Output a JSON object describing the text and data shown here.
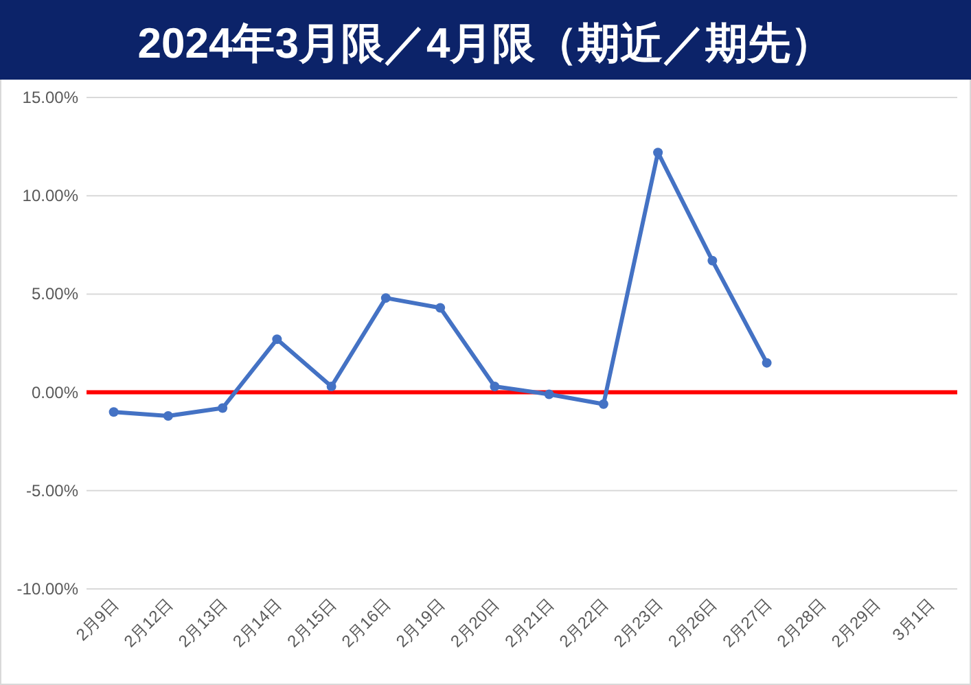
{
  "chart_data": {
    "type": "line",
    "title": "2024年3月限／4月限（期近／期先）",
    "categories": [
      "2月9日",
      "2月12日",
      "2月13日",
      "2月14日",
      "2月15日",
      "2月16日",
      "2月19日",
      "2月20日",
      "2月21日",
      "2月22日",
      "2月23日",
      "2月26日",
      "2月27日",
      "2月28日",
      "2月29日",
      "3月1日"
    ],
    "series": [
      {
        "color": "#4472c4",
        "values": [
          -1.0,
          -1.2,
          -0.8,
          2.7,
          0.3,
          4.8,
          4.3,
          0.3,
          -0.1,
          -0.6,
          12.2,
          6.7,
          1.5,
          null,
          null,
          null
        ]
      }
    ],
    "ylim": [
      -10,
      15
    ],
    "yticks": [
      {
        "value": -10,
        "label": "-10.00%"
      },
      {
        "value": -5,
        "label": "-5.00%"
      },
      {
        "value": 0,
        "label": "0.00%"
      },
      {
        "value": 5,
        "label": "5.00%"
      },
      {
        "value": 10,
        "label": "10.00%"
      },
      {
        "value": 15,
        "label": "15.00%"
      }
    ],
    "ref_lines": [
      {
        "axis": "y",
        "value": 0,
        "color": "#ff0000",
        "line_style": "solid"
      }
    ],
    "grid": "y",
    "marker": "circle",
    "line_style": "solid"
  }
}
